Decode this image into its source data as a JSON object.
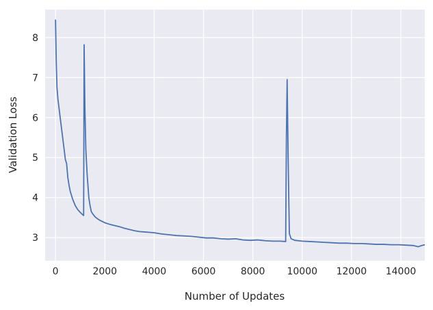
{
  "chart_data": {
    "type": "line",
    "x_label": "Number of Updates",
    "y_label": "Validation Loss",
    "x": [
      0,
      30,
      60,
      100,
      150,
      200,
      250,
      300,
      350,
      400,
      450,
      500,
      550,
      600,
      700,
      800,
      900,
      1000,
      1100,
      1140,
      1160,
      1190,
      1230,
      1280,
      1350,
      1400,
      1450,
      1500,
      1600,
      1700,
      1800,
      1900,
      2000,
      2200,
      2400,
      2600,
      2800,
      3000,
      3200,
      3400,
      3600,
      3800,
      4000,
      4300,
      4600,
      4900,
      5200,
      5500,
      5800,
      6100,
      6400,
      6700,
      7000,
      7300,
      7600,
      7900,
      8200,
      8500,
      8800,
      9100,
      9330,
      9360,
      9390,
      9430,
      9480,
      9550,
      9700,
      10000,
      10300,
      10600,
      10900,
      11200,
      11500,
      11800,
      12100,
      12400,
      12700,
      13000,
      13300,
      13600,
      13900,
      14200,
      14500,
      14700,
      14850,
      14970
    ],
    "series": [
      {
        "name": "Validation Loss",
        "color": "#4c72b0",
        "values": [
          8.45,
          7.4,
          6.75,
          6.45,
          6.2,
          5.95,
          5.7,
          5.45,
          5.2,
          4.95,
          4.85,
          4.5,
          4.3,
          4.15,
          3.95,
          3.8,
          3.7,
          3.63,
          3.57,
          3.55,
          7.82,
          6.3,
          5.2,
          4.6,
          4.0,
          3.8,
          3.65,
          3.6,
          3.52,
          3.47,
          3.43,
          3.4,
          3.37,
          3.33,
          3.3,
          3.27,
          3.23,
          3.2,
          3.17,
          3.15,
          3.14,
          3.13,
          3.12,
          3.09,
          3.07,
          3.05,
          3.04,
          3.03,
          3.01,
          2.99,
          2.99,
          2.97,
          2.96,
          2.97,
          2.94,
          2.93,
          2.94,
          2.92,
          2.91,
          2.91,
          2.9,
          5.5,
          6.95,
          5.0,
          3.1,
          2.97,
          2.93,
          2.91,
          2.9,
          2.89,
          2.88,
          2.87,
          2.86,
          2.86,
          2.85,
          2.85,
          2.84,
          2.83,
          2.83,
          2.82,
          2.82,
          2.81,
          2.8,
          2.77,
          2.8,
          2.82
        ]
      }
    ],
    "xlim": [
      -420,
      14970
    ],
    "ylim": [
      2.42,
      8.7
    ],
    "xticks": [
      0,
      2000,
      4000,
      6000,
      8000,
      10000,
      12000,
      14000
    ],
    "yticks": [
      3,
      4,
      5,
      6,
      7,
      8
    ],
    "grid": true,
    "background": "#eaeaf2"
  }
}
